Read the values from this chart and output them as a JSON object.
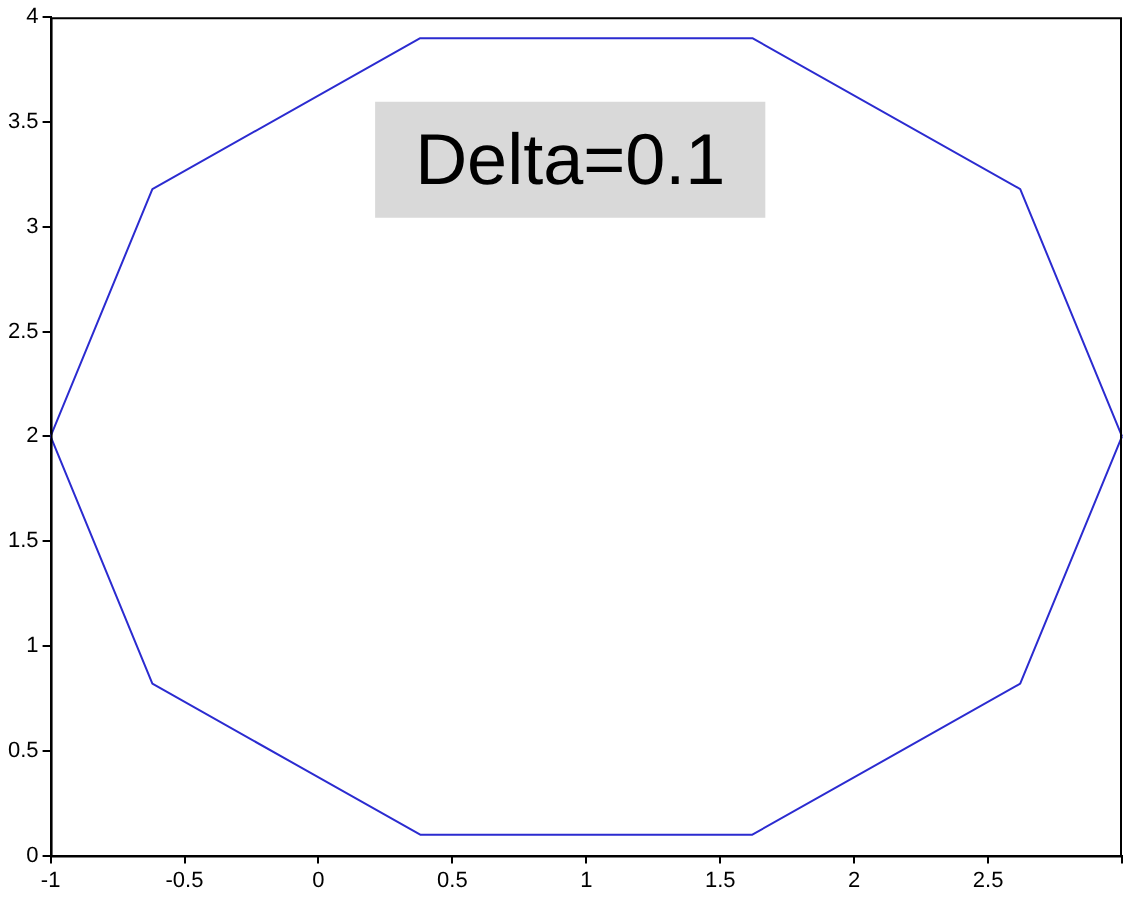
{
  "chart_data": {
    "type": "line",
    "x": [
      -1,
      -0.62,
      0.38,
      1.62,
      2.62,
      3
    ],
    "series": [
      {
        "color": "#2b2bd0",
        "values": [
          2,
          3.18,
          3.9,
          3.9,
          3.18,
          2
        ]
      },
      {
        "color": "#2b2bd0",
        "values": [
          2,
          0.82,
          0.1,
          0.1,
          0.82,
          2
        ]
      }
    ],
    "marker": "none",
    "line_style": "solid",
    "grid": false,
    "legend": false,
    "xlim": [
      -1,
      3
    ],
    "xticks": [
      -1,
      -0.5,
      0,
      0.5,
      1,
      1.5,
      2,
      2.5,
      {
        "value": 3,
        "label": null
      }
    ],
    "ylim": [
      0,
      4
    ],
    "yticks": [
      0,
      0.5,
      1,
      1.5,
      2,
      2.5,
      3,
      3.5,
      4
    ],
    "annotations": [
      "Delta=0.1"
    ]
  }
}
